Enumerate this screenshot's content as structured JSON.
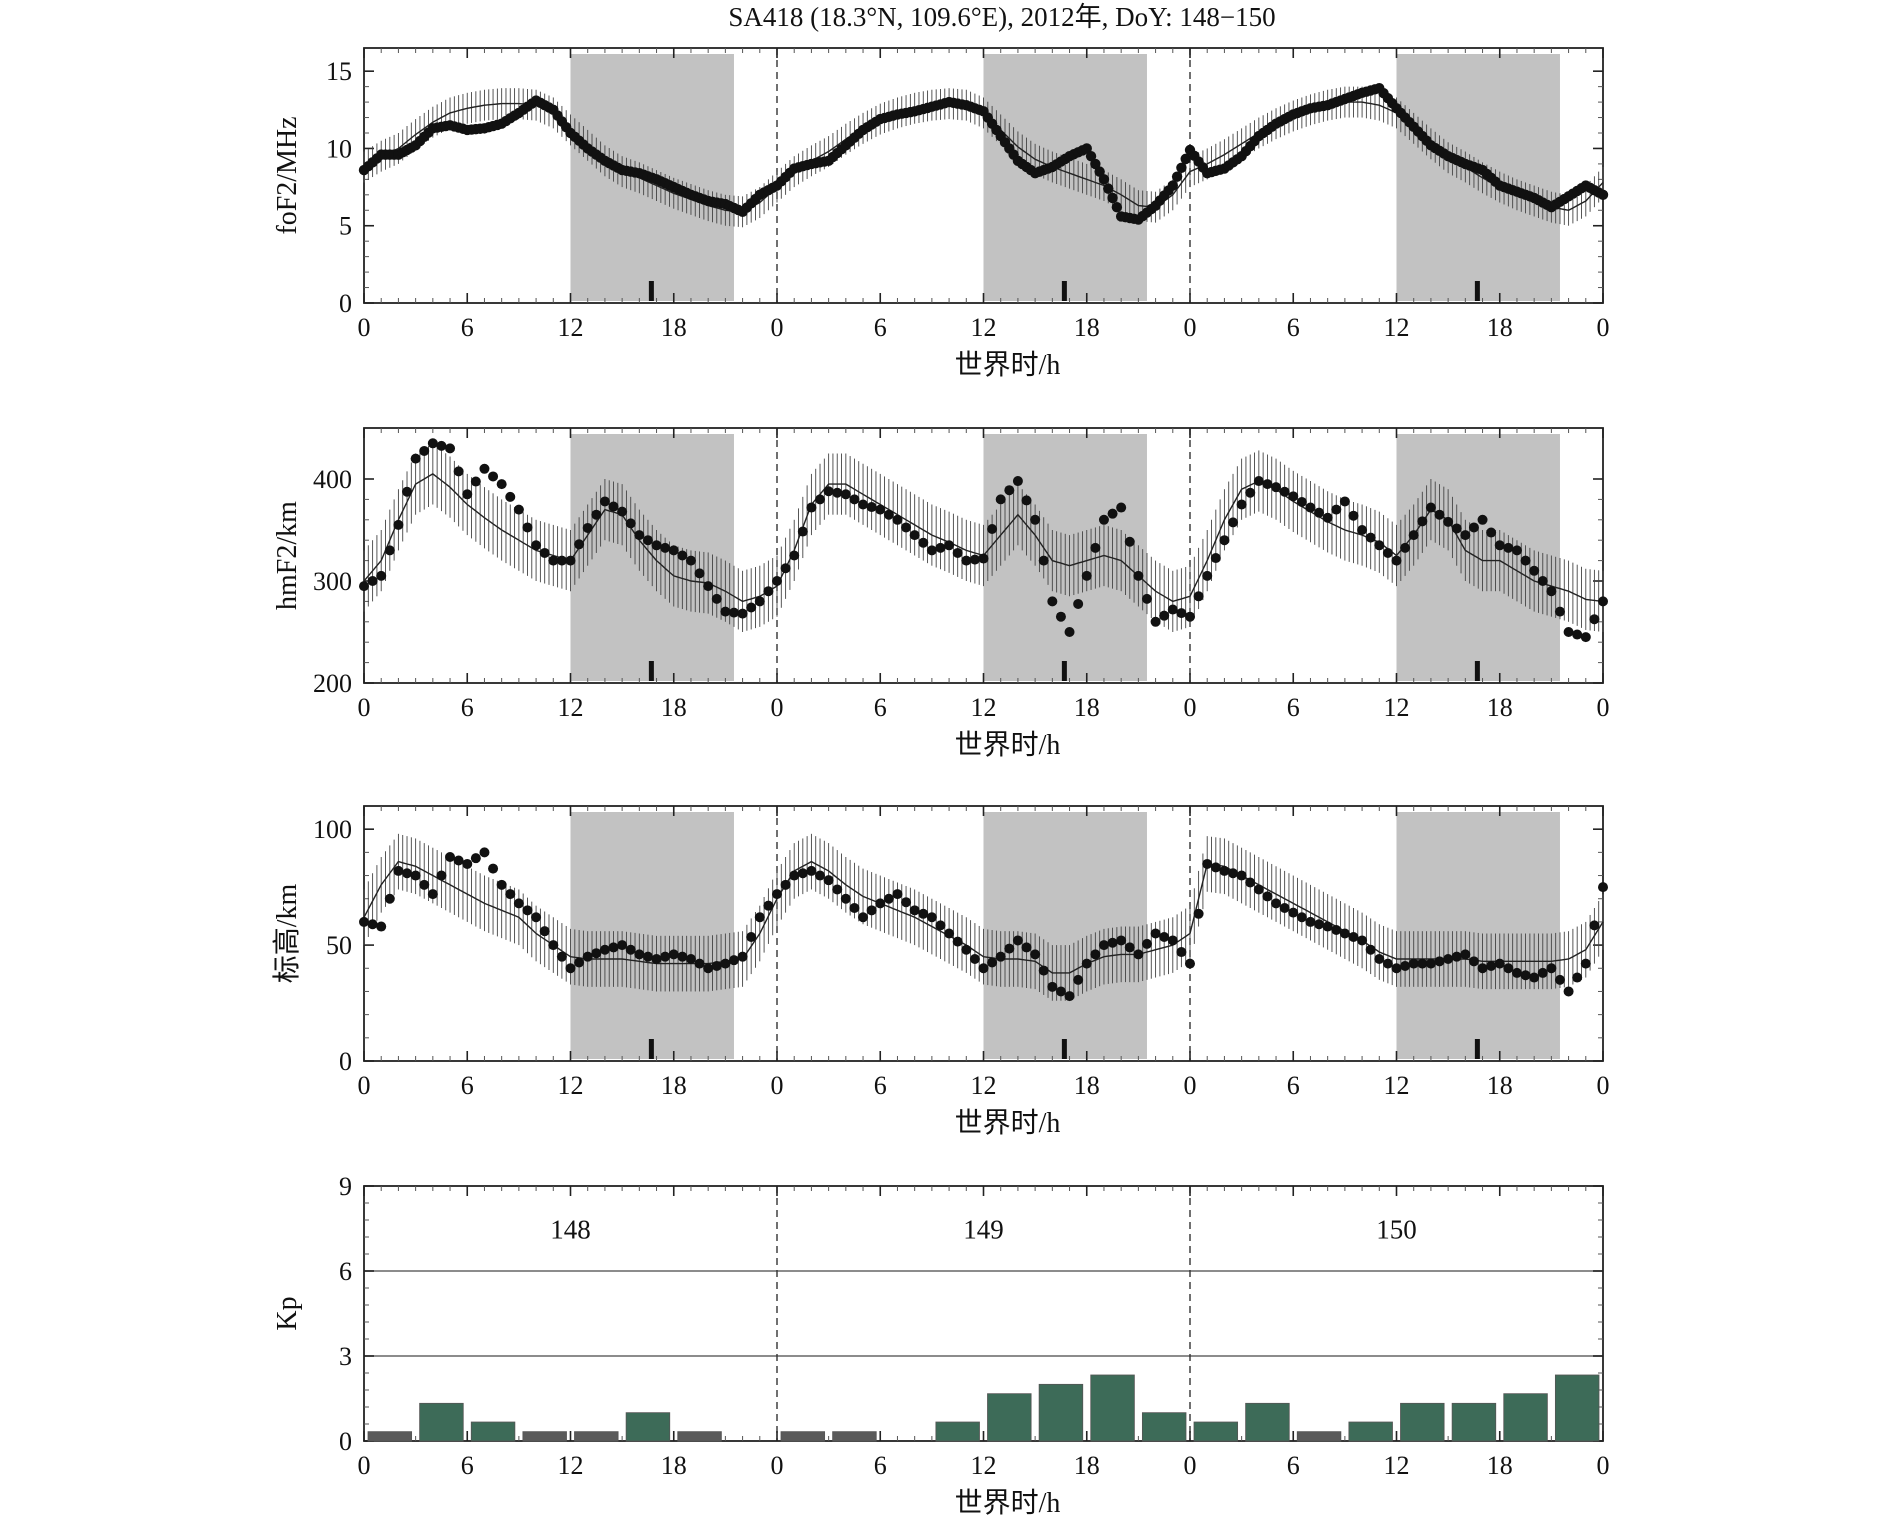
{
  "title": "SA418 (18.3°N, 109.6°E), 2012年, DoY: 148−150",
  "colors": {
    "night_shade": "#c2c2c2",
    "observed_marker": "#111111",
    "median_line": "#222222",
    "kp_bar_green": "#3d6b58",
    "kp_bar_gray": "#5a5a5a"
  },
  "chart_data": [
    {
      "type": "scatter",
      "panel": "foF2",
      "ylabel": "foF2/MHz",
      "xlabel": "世界时/h",
      "x_tick_labels": [
        "0",
        "6",
        "12",
        "18",
        "0",
        "6",
        "12",
        "18",
        "0",
        "6",
        "12",
        "18",
        "0"
      ],
      "yticks": [
        0,
        5,
        10,
        15
      ],
      "ylim": [
        0,
        16.5
      ],
      "xlim_hours": [
        0,
        72
      ],
      "night_intervals_hours": [
        [
          12,
          21.5
        ],
        [
          36,
          45.5
        ],
        [
          60,
          69.5
        ]
      ],
      "day_boundaries_hours": [
        24,
        48
      ],
      "event_marker_hours": [
        16.7,
        40.7,
        64.7
      ],
      "observed_anchors": {
        "x_hours": [
          0,
          1,
          2,
          3,
          4,
          5,
          6,
          7,
          8,
          9,
          10,
          11,
          12,
          13,
          14,
          15,
          16,
          17,
          18,
          19,
          20,
          21,
          22,
          23,
          24,
          25,
          26,
          27,
          28,
          29,
          30,
          31,
          32,
          33,
          34,
          35,
          36,
          37,
          38,
          39,
          40,
          41,
          42,
          43,
          44,
          45,
          46,
          47,
          48,
          49,
          50,
          51,
          52,
          53,
          54,
          55,
          56,
          57,
          58,
          59,
          60,
          61,
          62,
          63,
          64,
          65,
          66,
          67,
          68,
          69,
          70,
          71,
          72
        ],
        "y": [
          8.6,
          9.6,
          9.6,
          10.2,
          11.3,
          11.5,
          11.2,
          11.3,
          11.6,
          12.3,
          13.1,
          12.5,
          11.0,
          10.0,
          9.2,
          8.6,
          8.4,
          8.0,
          7.5,
          7.0,
          6.6,
          6.4,
          5.9,
          7.0,
          7.6,
          8.7,
          9.0,
          9.2,
          10.2,
          11.2,
          11.9,
          12.2,
          12.4,
          12.7,
          13.0,
          12.8,
          12.4,
          10.8,
          9.2,
          8.4,
          8.8,
          9.5,
          10.0,
          8.0,
          5.6,
          5.4,
          6.3,
          7.6,
          9.9,
          8.4,
          8.7,
          9.5,
          10.8,
          11.6,
          12.2,
          12.6,
          12.8,
          13.2,
          13.6,
          13.9,
          12.6,
          11.4,
          10.2,
          9.5,
          9.0,
          8.6,
          7.6,
          7.2,
          6.8,
          6.2,
          6.9,
          7.6,
          7.0
        ]
      },
      "median_anchors": {
        "x_hours": [
          0,
          1,
          2,
          3,
          4,
          5,
          6,
          7,
          8,
          9,
          10,
          11,
          12,
          13,
          14,
          15,
          16,
          17,
          18,
          19,
          20,
          21,
          22,
          23,
          24,
          25,
          26,
          27,
          28,
          29,
          30,
          31,
          32,
          33,
          34,
          35,
          36,
          37,
          38,
          39,
          40,
          41,
          42,
          43,
          44,
          45,
          46,
          47,
          48,
          49,
          50,
          51,
          52,
          53,
          54,
          55,
          56,
          57,
          58,
          59,
          60,
          61,
          62,
          63,
          64,
          65,
          66,
          67,
          68,
          69,
          70,
          71,
          72
        ],
        "y": [
          8.8,
          9.5,
          10.0,
          10.9,
          11.7,
          12.3,
          12.6,
          12.8,
          12.9,
          12.9,
          12.8,
          12.3,
          11.2,
          10.2,
          9.2,
          8.5,
          8.1,
          7.6,
          7.1,
          6.7,
          6.3,
          6.0,
          5.9,
          6.5,
          7.5,
          8.5,
          9.2,
          9.8,
          10.6,
          11.3,
          11.9,
          12.3,
          12.6,
          12.8,
          12.9,
          12.8,
          12.3,
          11.2,
          10.1,
          9.3,
          8.8,
          8.4,
          8.0,
          7.6,
          7.0,
          6.3,
          6.2,
          7.0,
          8.5,
          9.0,
          9.6,
          10.3,
          11.0,
          11.6,
          12.1,
          12.5,
          12.8,
          13.0,
          13.0,
          12.8,
          12.3,
          11.3,
          10.3,
          9.4,
          8.8,
          8.1,
          7.5,
          7.0,
          6.6,
          6.2,
          6.0,
          6.6,
          7.8
        ]
      },
      "median_bar_halfwidth": 1.0
    },
    {
      "type": "scatter",
      "panel": "hmF2",
      "ylabel": "hmF2/km",
      "xlabel": "世界时/h",
      "x_tick_labels": [
        "0",
        "6",
        "12",
        "18",
        "0",
        "6",
        "12",
        "18",
        "0",
        "6",
        "12",
        "18",
        "0"
      ],
      "yticks": [
        200,
        300,
        400
      ],
      "ylim": [
        200,
        450
      ],
      "xlim_hours": [
        0,
        72
      ],
      "night_intervals_hours": [
        [
          12,
          21.5
        ],
        [
          36,
          45.5
        ],
        [
          60,
          69.5
        ]
      ],
      "day_boundaries_hours": [
        24,
        48
      ],
      "event_marker_hours": [
        16.7,
        40.7,
        64.7
      ],
      "observed_anchors": {
        "x_hours": [
          0,
          1,
          2,
          3,
          4,
          5,
          6,
          7,
          8,
          9,
          10,
          11,
          12,
          13,
          14,
          15,
          16,
          17,
          18,
          19,
          20,
          21,
          22,
          23,
          24,
          25,
          26,
          27,
          28,
          29,
          30,
          31,
          32,
          33,
          34,
          35,
          36,
          37,
          38,
          39,
          40,
          41,
          42,
          43,
          44,
          45,
          46,
          47,
          48,
          49,
          50,
          51,
          52,
          53,
          54,
          55,
          56,
          57,
          58,
          59,
          60,
          61,
          62,
          63,
          64,
          65,
          66,
          67,
          68,
          69,
          70,
          71,
          72
        ],
        "y": [
          295,
          305,
          355,
          420,
          435,
          430,
          385,
          410,
          395,
          370,
          335,
          320,
          320,
          352,
          378,
          368,
          345,
          335,
          330,
          320,
          295,
          270,
          268,
          280,
          300,
          325,
          372,
          388,
          385,
          375,
          370,
          360,
          345,
          330,
          335,
          320,
          322,
          380,
          398,
          360,
          280,
          250,
          305,
          360,
          372,
          305,
          260,
          272,
          265,
          305,
          340,
          375,
          398,
          392,
          383,
          372,
          362,
          378,
          350,
          335,
          320,
          345,
          372,
          358,
          345,
          360,
          335,
          330,
          310,
          290,
          250,
          245,
          280
        ]
      },
      "median_anchors": {
        "x_hours": [
          0,
          1,
          2,
          3,
          4,
          5,
          6,
          7,
          8,
          9,
          10,
          11,
          12,
          13,
          14,
          15,
          16,
          17,
          18,
          19,
          20,
          21,
          22,
          23,
          24,
          25,
          26,
          27,
          28,
          29,
          30,
          31,
          32,
          33,
          34,
          35,
          36,
          37,
          38,
          39,
          40,
          41,
          42,
          43,
          44,
          45,
          46,
          47,
          48,
          49,
          50,
          51,
          52,
          53,
          54,
          55,
          56,
          57,
          58,
          59,
          60,
          61,
          62,
          63,
          64,
          65,
          66,
          67,
          68,
          69,
          70,
          71,
          72
        ],
        "y": [
          300,
          320,
          360,
          395,
          405,
          392,
          375,
          362,
          350,
          340,
          330,
          325,
          320,
          345,
          370,
          365,
          340,
          320,
          305,
          300,
          298,
          290,
          280,
          285,
          295,
          330,
          375,
          395,
          395,
          385,
          375,
          365,
          355,
          345,
          338,
          330,
          325,
          345,
          365,
          345,
          320,
          315,
          320,
          325,
          320,
          305,
          290,
          280,
          285,
          320,
          360,
          390,
          398,
          390,
          378,
          368,
          358,
          350,
          345,
          338,
          325,
          345,
          370,
          360,
          330,
          320,
          320,
          310,
          300,
          295,
          290,
          282,
          280
        ]
      },
      "median_bar_halfwidth": 30
    },
    {
      "type": "scatter",
      "panel": "scale_height",
      "ylabel": "标高/km",
      "xlabel": "世界时/h",
      "x_tick_labels": [
        "0",
        "6",
        "12",
        "18",
        "0",
        "6",
        "12",
        "18",
        "0",
        "6",
        "12",
        "18",
        "0"
      ],
      "yticks": [
        0,
        50,
        100
      ],
      "ylim": [
        0,
        110
      ],
      "xlim_hours": [
        0,
        72
      ],
      "night_intervals_hours": [
        [
          12,
          21.5
        ],
        [
          36,
          45.5
        ],
        [
          60,
          69.5
        ]
      ],
      "day_boundaries_hours": [
        24,
        48
      ],
      "event_marker_hours": [
        16.7,
        40.7,
        64.7
      ],
      "observed_anchors": {
        "x_hours": [
          0,
          1,
          2,
          3,
          4,
          5,
          6,
          7,
          8,
          9,
          10,
          11,
          12,
          13,
          14,
          15,
          16,
          17,
          18,
          19,
          20,
          21,
          22,
          23,
          24,
          25,
          26,
          27,
          28,
          29,
          30,
          31,
          32,
          33,
          34,
          35,
          36,
          37,
          38,
          39,
          40,
          41,
          42,
          43,
          44,
          45,
          46,
          47,
          48,
          49,
          50,
          51,
          52,
          53,
          54,
          55,
          56,
          57,
          58,
          59,
          60,
          61,
          62,
          63,
          64,
          65,
          66,
          67,
          68,
          69,
          70,
          71,
          72
        ],
        "y": [
          60,
          58,
          82,
          80,
          72,
          88,
          85,
          90,
          76,
          68,
          62,
          50,
          40,
          45,
          48,
          50,
          46,
          44,
          46,
          44,
          40,
          42,
          45,
          62,
          72,
          80,
          82,
          78,
          70,
          62,
          68,
          72,
          65,
          62,
          55,
          48,
          40,
          45,
          52,
          46,
          32,
          28,
          42,
          50,
          52,
          46,
          55,
          52,
          42,
          85,
          82,
          80,
          74,
          68,
          64,
          60,
          58,
          55,
          52,
          44,
          40,
          42,
          42,
          44,
          46,
          40,
          42,
          38,
          36,
          40,
          30,
          42,
          75
        ]
      },
      "median_anchors": {
        "x_hours": [
          0,
          1,
          2,
          3,
          4,
          5,
          6,
          7,
          8,
          9,
          10,
          11,
          12,
          13,
          14,
          15,
          16,
          17,
          18,
          19,
          20,
          21,
          22,
          23,
          24,
          25,
          26,
          27,
          28,
          29,
          30,
          31,
          32,
          33,
          34,
          35,
          36,
          37,
          38,
          39,
          40,
          41,
          42,
          43,
          44,
          45,
          46,
          47,
          48,
          49,
          50,
          51,
          52,
          53,
          54,
          55,
          56,
          57,
          58,
          59,
          60,
          61,
          62,
          63,
          64,
          65,
          66,
          67,
          68,
          69,
          70,
          71,
          72
        ],
        "y": [
          62,
          76,
          86,
          84,
          80,
          76,
          72,
          68,
          65,
          62,
          55,
          50,
          45,
          44,
          44,
          44,
          43,
          42,
          42,
          42,
          42,
          43,
          44,
          55,
          70,
          82,
          86,
          82,
          76,
          71,
          68,
          65,
          62,
          58,
          54,
          50,
          45,
          44,
          44,
          43,
          38,
          38,
          42,
          45,
          46,
          46,
          48,
          50,
          55,
          85,
          84,
          80,
          76,
          72,
          68,
          64,
          60,
          56,
          52,
          47,
          44,
          44,
          44,
          44,
          44,
          43,
          43,
          43,
          43,
          43,
          44,
          48,
          60
        ]
      },
      "median_bar_halfwidth": 12
    },
    {
      "type": "bar",
      "panel": "Kp",
      "ylabel": "Kp",
      "xlabel": "世界时/h",
      "x_tick_labels": [
        "0",
        "6",
        "12",
        "18",
        "0",
        "6",
        "12",
        "18",
        "0",
        "6",
        "12",
        "18",
        "0"
      ],
      "yticks": [
        0,
        3,
        6,
        9
      ],
      "ylim": [
        0,
        9
      ],
      "grid_lines_y": [
        3,
        6
      ],
      "xlim_hours": [
        0,
        72
      ],
      "day_boundaries_hours": [
        24,
        48
      ],
      "day_labels": [
        "148",
        "149",
        "150"
      ],
      "bin_hours": 3,
      "values": [
        0.33,
        1.33,
        0.67,
        0.33,
        0.33,
        1.0,
        0.33,
        0.0,
        0.33,
        0.33,
        0.0,
        0.67,
        1.67,
        2.0,
        2.33,
        1.0,
        0.67,
        1.33,
        0.33,
        0.67,
        1.33,
        1.33,
        1.67,
        2.33
      ],
      "bar_colors": [
        "gray",
        "green",
        "green",
        "gray",
        "gray",
        "green",
        "gray",
        "gray",
        "gray",
        "gray",
        "gray",
        "green",
        "green",
        "green",
        "green",
        "green",
        "green",
        "green",
        "gray",
        "green",
        "green",
        "green",
        "green",
        "green"
      ]
    }
  ]
}
